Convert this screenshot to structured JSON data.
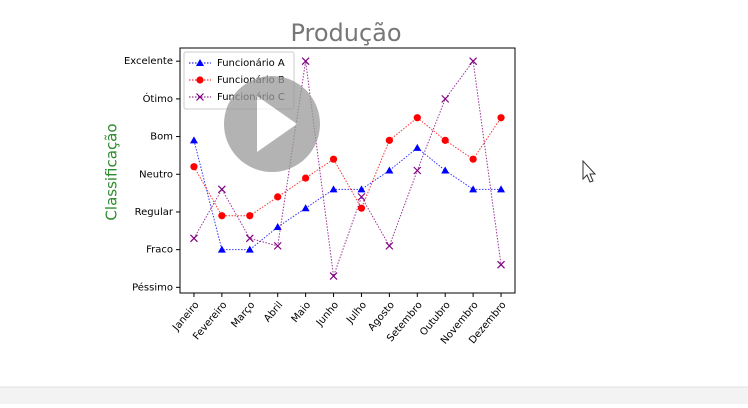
{
  "chart_data": {
    "type": "line",
    "title": "Produção",
    "y_label": "Classificação",
    "categories": [
      "Janeiro",
      "Fevereiro",
      "Março",
      "Abril",
      "Maio",
      "Junho",
      "Julho",
      "Agosto",
      "Setembro",
      "Outubro",
      "Novembro",
      "Dezembro"
    ],
    "ylim": [
      -0.15,
      6.35
    ],
    "yticks": [
      {
        "value": 0,
        "label": "Péssimo"
      },
      {
        "value": 1,
        "label": "Fraco"
      },
      {
        "value": 2,
        "label": "Regular"
      },
      {
        "value": 3,
        "label": "Neutro"
      },
      {
        "value": 4,
        "label": "Bom"
      },
      {
        "value": 5,
        "label": "Ótimo"
      },
      {
        "value": 6,
        "label": "Excelente"
      }
    ],
    "legend": "upper left",
    "series": [
      {
        "name": "Funcionário A",
        "color": "#0000ff",
        "marker": "triangle",
        "values": [
          3.9,
          1.0,
          1.0,
          1.6,
          2.1,
          2.6,
          2.6,
          3.1,
          3.7,
          3.1,
          2.6,
          2.6
        ]
      },
      {
        "name": "Funcionário B",
        "color": "#ff0000",
        "marker": "circle",
        "values": [
          3.2,
          1.9,
          1.9,
          2.4,
          2.9,
          3.4,
          2.1,
          3.9,
          4.5,
          3.9,
          3.4,
          4.5
        ]
      },
      {
        "name": "Funcionário C",
        "color": "#800080",
        "marker": "x",
        "values": [
          1.3,
          2.6,
          1.3,
          1.1,
          6.0,
          0.3,
          2.4,
          1.1,
          3.1,
          5.0,
          6.0,
          0.6
        ]
      }
    ]
  }
}
